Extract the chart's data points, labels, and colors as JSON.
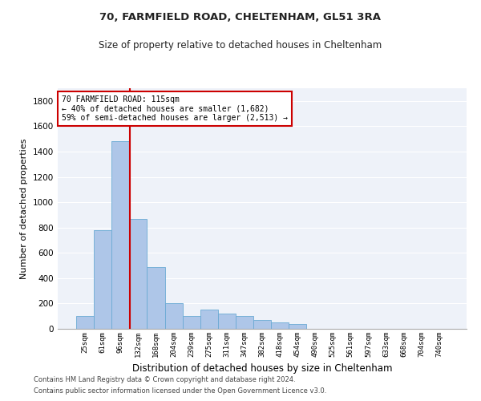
{
  "title1": "70, FARMFIELD ROAD, CHELTENHAM, GL51 3RA",
  "title2": "Size of property relative to detached houses in Cheltenham",
  "xlabel": "Distribution of detached houses by size in Cheltenham",
  "ylabel": "Number of detached properties",
  "categories": [
    "25sqm",
    "61sqm",
    "96sqm",
    "132sqm",
    "168sqm",
    "204sqm",
    "239sqm",
    "275sqm",
    "311sqm",
    "347sqm",
    "382sqm",
    "418sqm",
    "454sqm",
    "490sqm",
    "525sqm",
    "561sqm",
    "597sqm",
    "633sqm",
    "668sqm",
    "704sqm",
    "740sqm"
  ],
  "values": [
    100,
    780,
    1480,
    870,
    490,
    200,
    100,
    150,
    120,
    100,
    70,
    50,
    40,
    0,
    0,
    0,
    0,
    0,
    0,
    0,
    0
  ],
  "bar_color": "#aec6e8",
  "bar_edgecolor": "#6aaad4",
  "vline_color": "#cc0000",
  "annotation_line1": "70 FARMFIELD ROAD: 115sqm",
  "annotation_line2": "← 40% of detached houses are smaller (1,682)",
  "annotation_line3": "59% of semi-detached houses are larger (2,513) →",
  "annotation_box_facecolor": "#ffffff",
  "annotation_box_edgecolor": "#cc0000",
  "ylim": [
    0,
    1900
  ],
  "yticks": [
    0,
    200,
    400,
    600,
    800,
    1000,
    1200,
    1400,
    1600,
    1800
  ],
  "footer1": "Contains HM Land Registry data © Crown copyright and database right 2024.",
  "footer2": "Contains public sector information licensed under the Open Government Licence v3.0.",
  "plot_bg_color": "#eef2f9",
  "fig_bg_color": "#ffffff",
  "grid_color": "#ffffff",
  "vline_x_index": 2.53
}
